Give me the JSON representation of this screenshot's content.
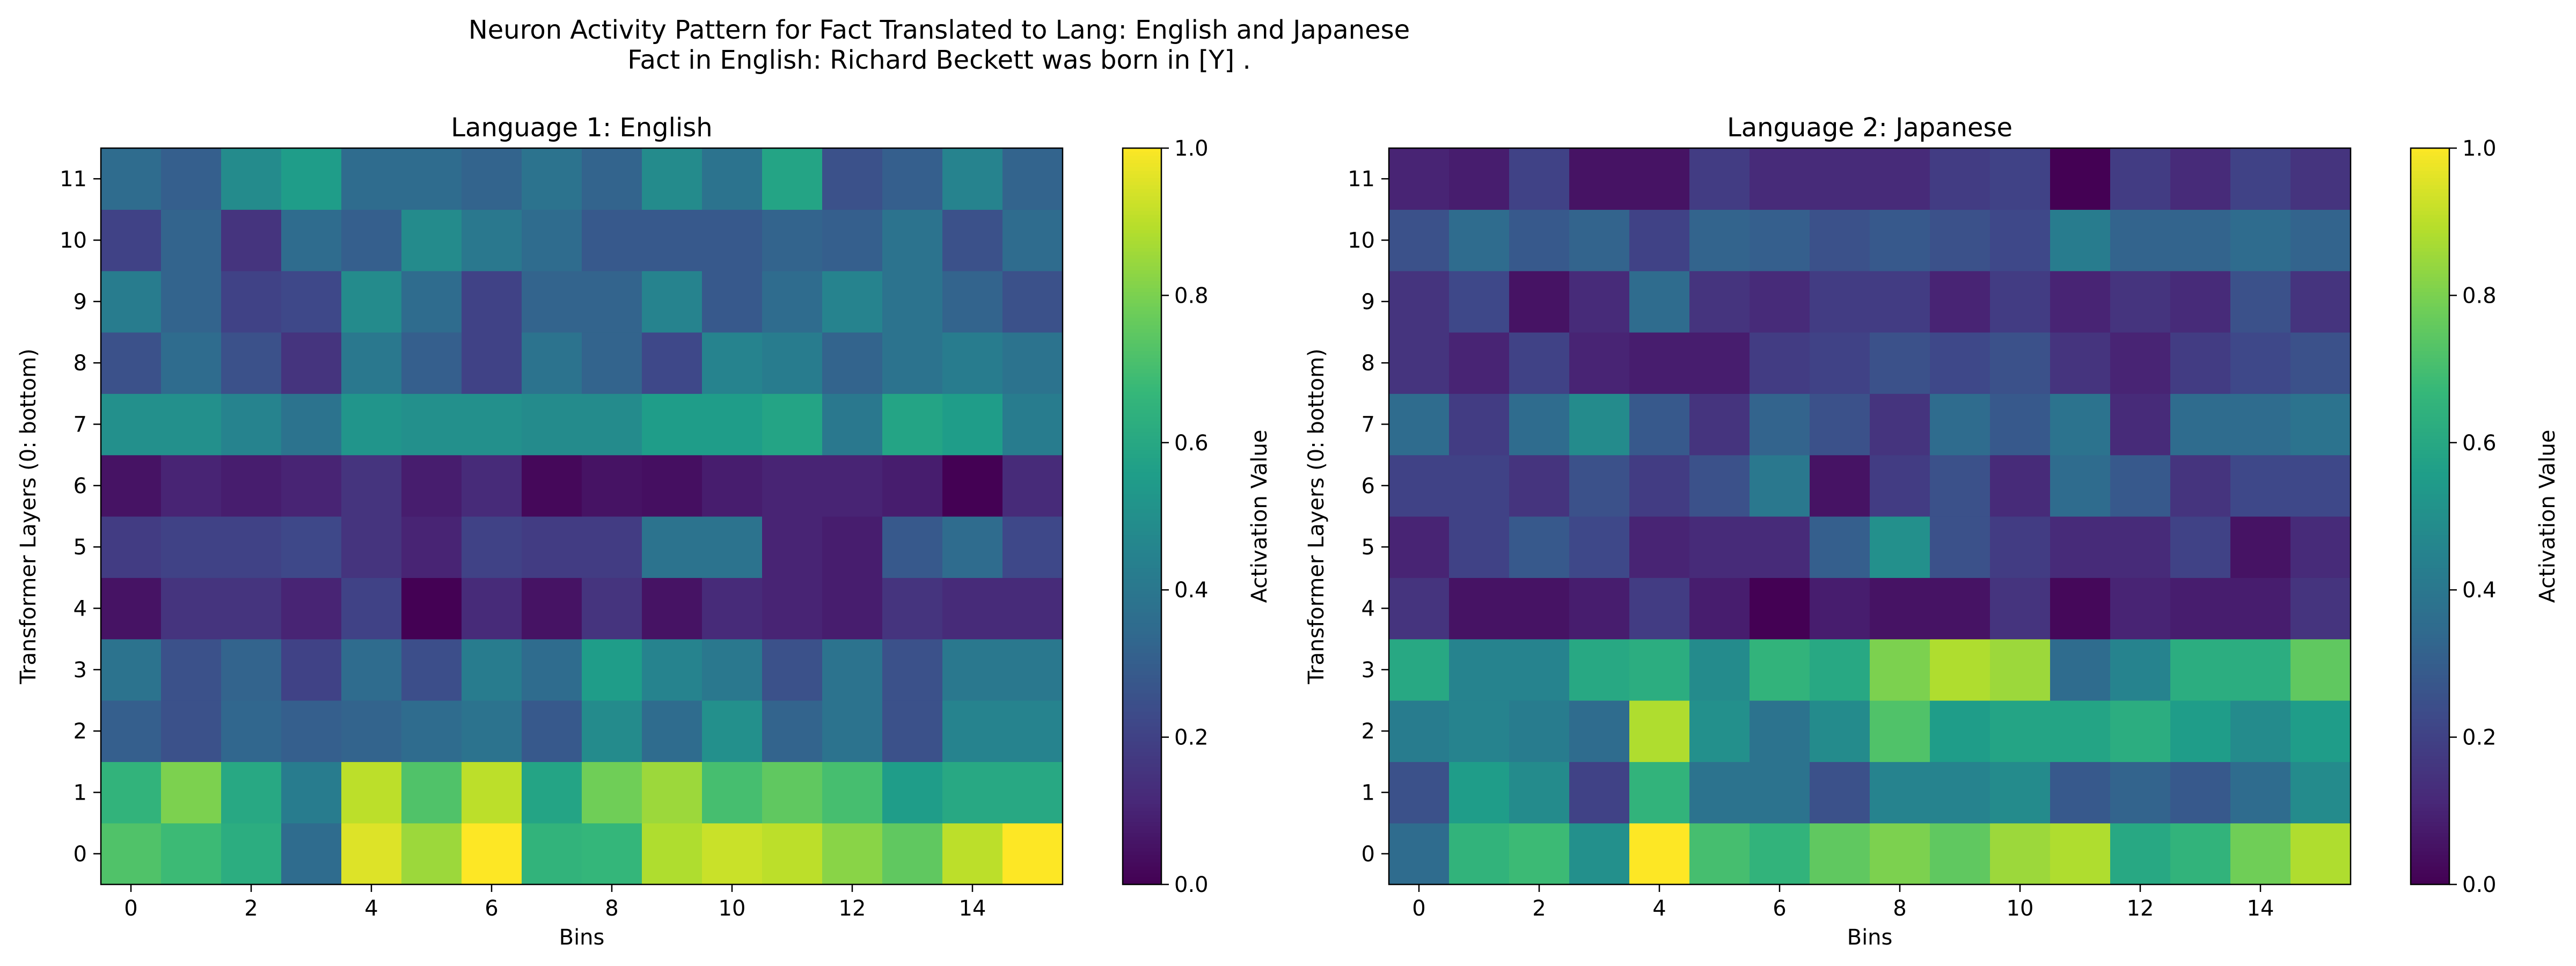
{
  "figure": {
    "title_line1": "Neuron Activity Pattern for Fact Translated to Lang: English and Japanese",
    "title_line2": "Fact in English: Richard Beckett was born in [Y] ."
  },
  "colormap": [
    "#fde725",
    "#b5de2b",
    "#6ece58",
    "#35b779",
    "#1f9e89",
    "#26828e",
    "#31688e",
    "#3e4989",
    "#482878",
    "#440154"
  ],
  "chart_data": [
    {
      "type": "heatmap",
      "title": "Language 1: English",
      "xlabel": "Bins",
      "ylabel": "Transformer Layers (0: bottom)",
      "colorbar_label": "Activation Value",
      "vmin": 0.0,
      "vmax": 1.0,
      "x_ticks": [
        "0",
        "2",
        "4",
        "6",
        "8",
        "10",
        "12",
        "14"
      ],
      "y_ticks": [
        "0",
        "1",
        "2",
        "3",
        "4",
        "5",
        "6",
        "7",
        "8",
        "9",
        "10",
        "11"
      ],
      "colorbar_ticks": [
        "0.0",
        "0.2",
        "0.4",
        "0.6",
        "0.8",
        "1.0"
      ],
      "values": [
        [
          0.72,
          0.68,
          0.62,
          0.35,
          0.95,
          0.85,
          1.0,
          0.65,
          0.66,
          0.88,
          0.92,
          0.9,
          0.82,
          0.75,
          0.9,
          1.0
        ],
        [
          0.65,
          0.8,
          0.6,
          0.42,
          0.9,
          0.72,
          0.9,
          0.58,
          0.78,
          0.85,
          0.7,
          0.75,
          0.7,
          0.55,
          0.6,
          0.6
        ],
        [
          0.3,
          0.25,
          0.33,
          0.3,
          0.32,
          0.35,
          0.38,
          0.28,
          0.48,
          0.35,
          0.5,
          0.32,
          0.38,
          0.25,
          0.45,
          0.45
        ],
        [
          0.38,
          0.25,
          0.32,
          0.2,
          0.35,
          0.24,
          0.42,
          0.35,
          0.55,
          0.45,
          0.4,
          0.25,
          0.38,
          0.25,
          0.4,
          0.4
        ],
        [
          0.05,
          0.15,
          0.15,
          0.1,
          0.2,
          0.0,
          0.12,
          0.05,
          0.15,
          0.05,
          0.12,
          0.1,
          0.08,
          0.15,
          0.12,
          0.12
        ],
        [
          0.18,
          0.2,
          0.2,
          0.22,
          0.15,
          0.1,
          0.2,
          0.18,
          0.18,
          0.38,
          0.38,
          0.1,
          0.08,
          0.28,
          0.35,
          0.22
        ],
        [
          0.05,
          0.1,
          0.08,
          0.1,
          0.15,
          0.08,
          0.12,
          0.02,
          0.05,
          0.04,
          0.08,
          0.1,
          0.1,
          0.08,
          0.0,
          0.12
        ],
        [
          0.5,
          0.5,
          0.45,
          0.38,
          0.52,
          0.5,
          0.5,
          0.48,
          0.48,
          0.55,
          0.55,
          0.58,
          0.4,
          0.58,
          0.55,
          0.42
        ],
        [
          0.25,
          0.35,
          0.25,
          0.15,
          0.4,
          0.3,
          0.2,
          0.38,
          0.32,
          0.22,
          0.45,
          0.42,
          0.32,
          0.38,
          0.42,
          0.38
        ],
        [
          0.42,
          0.32,
          0.2,
          0.22,
          0.48,
          0.35,
          0.2,
          0.32,
          0.32,
          0.45,
          0.28,
          0.35,
          0.45,
          0.38,
          0.32,
          0.25
        ],
        [
          0.2,
          0.32,
          0.15,
          0.35,
          0.3,
          0.48,
          0.4,
          0.35,
          0.28,
          0.28,
          0.28,
          0.32,
          0.3,
          0.38,
          0.25,
          0.35
        ],
        [
          0.35,
          0.3,
          0.48,
          0.55,
          0.35,
          0.35,
          0.32,
          0.38,
          0.32,
          0.48,
          0.38,
          0.58,
          0.25,
          0.3,
          0.45,
          0.32
        ]
      ]
    },
    {
      "type": "heatmap",
      "title": "Language 2: Japanese",
      "xlabel": "Bins",
      "ylabel": "Transformer Layers (0: bottom)",
      "colorbar_label": "Activation Value",
      "vmin": 0.0,
      "vmax": 1.0,
      "x_ticks": [
        "0",
        "2",
        "4",
        "6",
        "8",
        "10",
        "12",
        "14"
      ],
      "y_ticks": [
        "0",
        "1",
        "2",
        "3",
        "4",
        "5",
        "6",
        "7",
        "8",
        "9",
        "10",
        "11"
      ],
      "colorbar_ticks": [
        "0.0",
        "0.2",
        "0.4",
        "0.6",
        "0.8",
        "1.0"
      ],
      "values": [
        [
          0.35,
          0.65,
          0.68,
          0.5,
          1.0,
          0.7,
          0.65,
          0.75,
          0.8,
          0.75,
          0.85,
          0.88,
          0.6,
          0.65,
          0.78,
          0.88
        ],
        [
          0.25,
          0.55,
          0.48,
          0.2,
          0.65,
          0.38,
          0.38,
          0.25,
          0.45,
          0.45,
          0.48,
          0.28,
          0.32,
          0.28,
          0.35,
          0.48
        ],
        [
          0.42,
          0.45,
          0.42,
          0.35,
          0.88,
          0.5,
          0.38,
          0.48,
          0.72,
          0.55,
          0.58,
          0.58,
          0.62,
          0.55,
          0.48,
          0.55
        ],
        [
          0.6,
          0.45,
          0.45,
          0.6,
          0.62,
          0.48,
          0.65,
          0.6,
          0.8,
          0.88,
          0.85,
          0.35,
          0.45,
          0.62,
          0.62,
          0.75
        ],
        [
          0.15,
          0.05,
          0.05,
          0.08,
          0.18,
          0.08,
          0.0,
          0.08,
          0.05,
          0.05,
          0.15,
          0.02,
          0.1,
          0.08,
          0.08,
          0.15
        ],
        [
          0.1,
          0.2,
          0.28,
          0.22,
          0.1,
          0.12,
          0.12,
          0.3,
          0.5,
          0.25,
          0.18,
          0.12,
          0.12,
          0.2,
          0.05,
          0.12
        ],
        [
          0.2,
          0.2,
          0.15,
          0.25,
          0.18,
          0.25,
          0.4,
          0.05,
          0.18,
          0.25,
          0.12,
          0.35,
          0.28,
          0.15,
          0.22,
          0.22
        ],
        [
          0.35,
          0.18,
          0.35,
          0.48,
          0.28,
          0.15,
          0.32,
          0.25,
          0.15,
          0.35,
          0.28,
          0.38,
          0.12,
          0.35,
          0.35,
          0.38
        ],
        [
          0.15,
          0.1,
          0.2,
          0.1,
          0.08,
          0.08,
          0.18,
          0.2,
          0.25,
          0.22,
          0.25,
          0.15,
          0.1,
          0.18,
          0.22,
          0.25
        ],
        [
          0.15,
          0.22,
          0.05,
          0.12,
          0.35,
          0.15,
          0.12,
          0.18,
          0.18,
          0.1,
          0.18,
          0.1,
          0.15,
          0.12,
          0.25,
          0.15
        ],
        [
          0.25,
          0.35,
          0.28,
          0.32,
          0.2,
          0.32,
          0.3,
          0.25,
          0.28,
          0.25,
          0.22,
          0.42,
          0.32,
          0.32,
          0.35,
          0.32
        ],
        [
          0.1,
          0.08,
          0.2,
          0.05,
          0.05,
          0.18,
          0.12,
          0.12,
          0.12,
          0.18,
          0.2,
          0.0,
          0.18,
          0.12,
          0.2,
          0.15
        ]
      ]
    }
  ]
}
